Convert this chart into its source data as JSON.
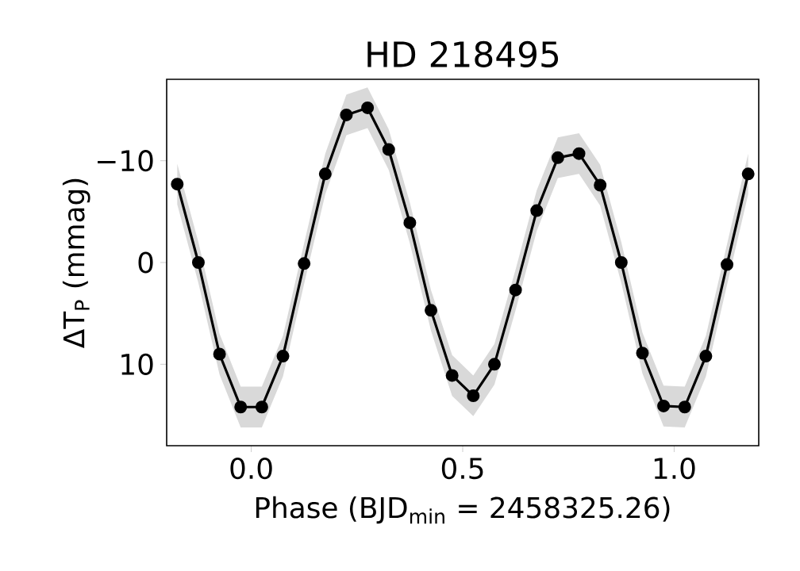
{
  "chart_data": {
    "type": "line",
    "title": "HD 218495",
    "xlabel": "Phase (BJD$_{min}$ = 2458325.26)",
    "ylabel": "ΔT$_{P}$ (mmag)",
    "x": [
      -0.175,
      -0.125,
      -0.075,
      -0.025,
      0.025,
      0.075,
      0.125,
      0.175,
      0.225,
      0.275,
      0.325,
      0.375,
      0.425,
      0.475,
      0.525,
      0.575,
      0.625,
      0.675,
      0.725,
      0.775,
      0.825,
      0.875,
      0.925,
      0.975,
      1.025,
      1.075,
      1.125,
      1.175
    ],
    "series": [
      {
        "color": "#000000",
        "marker": "circle",
        "line_style": "solid",
        "values": [
          -7.7,
          0.0,
          9.0,
          14.2,
          14.2,
          9.2,
          0.1,
          -8.7,
          -14.5,
          -15.2,
          -11.1,
          -3.9,
          4.7,
          11.1,
          13.1,
          10.0,
          2.7,
          -5.1,
          -10.3,
          -10.7,
          -7.6,
          0.0,
          8.9,
          14.1,
          14.2,
          9.2,
          0.2,
          -8.7
        ],
        "lower": [
          -9.7,
          -2.0,
          7.0,
          12.2,
          12.2,
          7.2,
          -1.9,
          -10.7,
          -16.5,
          -17.2,
          -13.1,
          -5.9,
          2.7,
          9.1,
          11.1,
          8.0,
          0.7,
          -7.1,
          -12.3,
          -12.7,
          -9.6,
          -2.0,
          6.9,
          12.1,
          12.2,
          7.2,
          -1.8,
          -10.7
        ],
        "upper": [
          -5.7,
          2.0,
          11.0,
          16.2,
          16.2,
          11.2,
          2.1,
          -6.7,
          -12.5,
          -13.2,
          -9.1,
          -1.9,
          6.7,
          13.1,
          15.1,
          12.0,
          4.7,
          -3.1,
          -8.3,
          -8.7,
          -5.6,
          2.0,
          10.9,
          16.1,
          16.2,
          11.2,
          2.2,
          -6.7
        ]
      }
    ],
    "xlim": [
      -0.2,
      1.2
    ],
    "ylim": [
      18,
      -18
    ],
    "xticks": [
      {
        "value": 0,
        "label": "0.0"
      },
      {
        "value": 0.5,
        "label": "0.5"
      },
      {
        "value": 1,
        "label": "1.0"
      }
    ],
    "yticks": [
      {
        "value": -10,
        "label": "−10"
      },
      0,
      10
    ]
  }
}
